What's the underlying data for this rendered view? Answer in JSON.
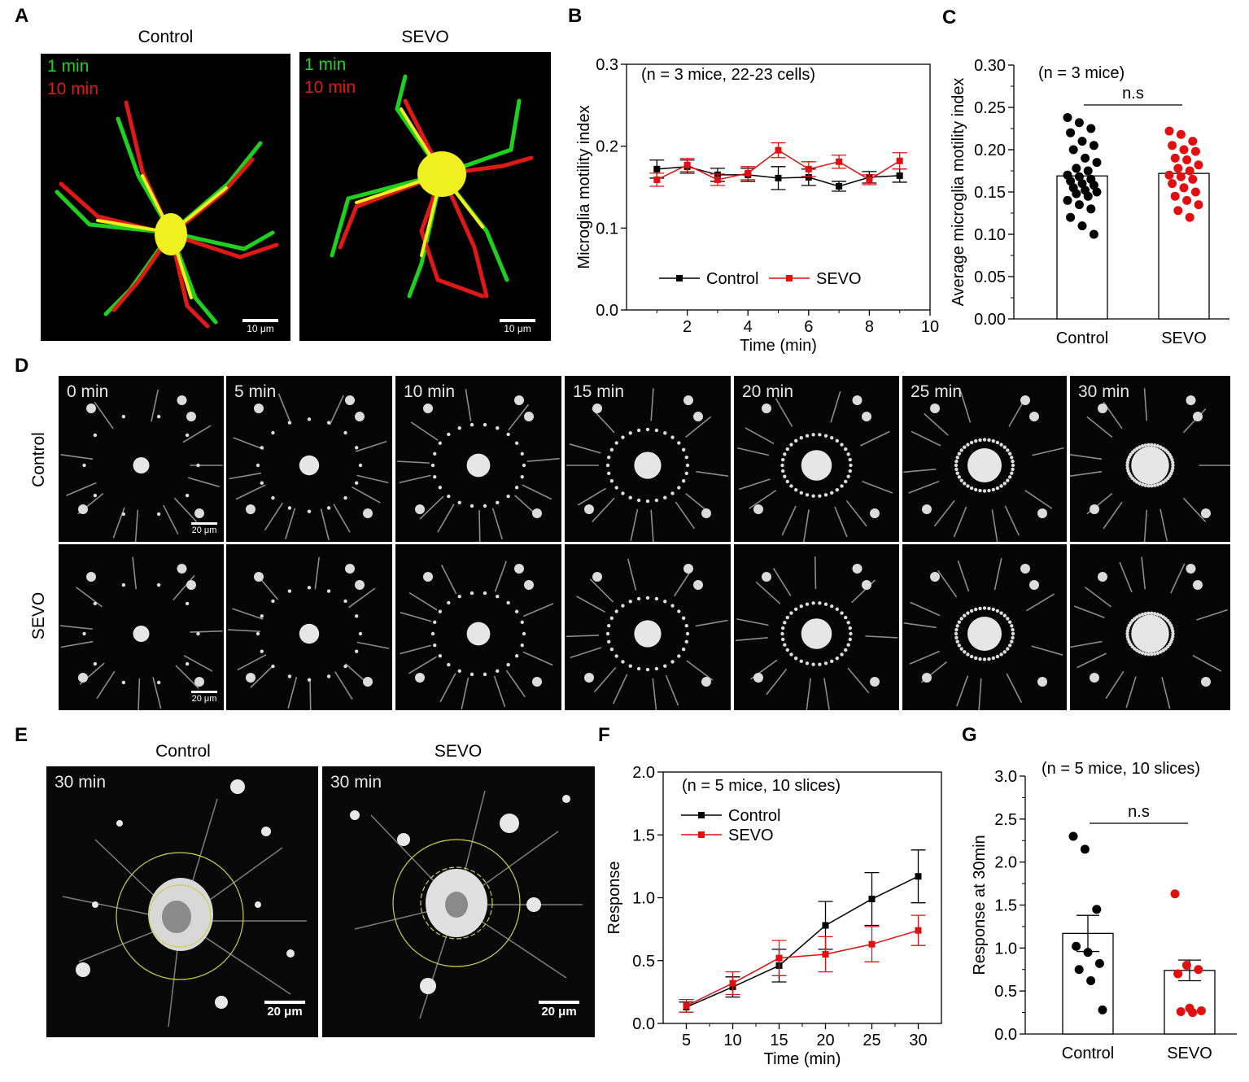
{
  "panels": {
    "A": {
      "letter": "A",
      "titles": [
        "Control",
        "SEVO"
      ],
      "overlay_green": "1 min",
      "overlay_red": "10 min",
      "scale": "10 μm",
      "colors": {
        "green": "#1fd11f",
        "red": "#e01818",
        "yellow": "#f0f020"
      }
    },
    "B": {
      "letter": "B"
    },
    "C": {
      "letter": "C"
    },
    "D": {
      "letter": "D",
      "times": [
        "0 min",
        "5 min",
        "10 min",
        "15 min",
        "20 min",
        "25 min",
        "30 min"
      ],
      "rows": [
        "Control",
        "SEVO"
      ],
      "scale": "20 μm"
    },
    "E": {
      "letter": "E",
      "titles": [
        "Control",
        "SEVO"
      ],
      "time": "30 min",
      "scale": "20 μm"
    },
    "F": {
      "letter": "F"
    },
    "G": {
      "letter": "G"
    }
  },
  "chart_data": [
    {
      "id": "B",
      "type": "line",
      "annotation": "(n = 3 mice, 22-23 cells)",
      "xlabel": "Time (min)",
      "ylabel": "Microglia motility index",
      "xlim": [
        0,
        10
      ],
      "ylim": [
        0,
        0.3
      ],
      "xticks": [
        "2",
        "4",
        "6",
        "8",
        "10"
      ],
      "yticks": [
        "0.0",
        "0.1",
        "0.2",
        "0.3"
      ],
      "legend": "bottom",
      "series": [
        {
          "name": "Control",
          "color": "#000000",
          "x": [
            1,
            2,
            3,
            4,
            5,
            6,
            7,
            8,
            9
          ],
          "y": [
            0.172,
            0.175,
            0.165,
            0.165,
            0.161,
            0.162,
            0.151,
            0.162,
            0.164
          ],
          "err": [
            0.011,
            0.008,
            0.008,
            0.008,
            0.014,
            0.01,
            0.006,
            0.007,
            0.008
          ]
        },
        {
          "name": "SEVO",
          "color": "#e01010",
          "x": [
            1,
            2,
            3,
            4,
            5,
            6,
            7,
            8,
            9
          ],
          "y": [
            0.159,
            0.177,
            0.159,
            0.167,
            0.195,
            0.172,
            0.181,
            0.159,
            0.182
          ],
          "err": [
            0.008,
            0.008,
            0.007,
            0.008,
            0.009,
            0.009,
            0.008,
            0.006,
            0.01
          ]
        }
      ]
    },
    {
      "id": "C",
      "type": "bar",
      "annotation": "(n = 3 mice)",
      "significance": "n.s",
      "ylabel": "Average microglia motility index",
      "ylim": [
        0,
        0.3
      ],
      "yticks": [
        "0.00",
        "0.05",
        "0.10",
        "0.15",
        "0.20",
        "0.25",
        "0.30"
      ],
      "categories": [
        "Control",
        "SEVO"
      ],
      "values": [
        0.169,
        0.172
      ],
      "colors": [
        "#000000",
        "#e01010"
      ],
      "points": [
        [
          0.238,
          0.232,
          0.225,
          0.22,
          0.21,
          0.205,
          0.2,
          0.19,
          0.185,
          0.178,
          0.175,
          0.17,
          0.168,
          0.165,
          0.163,
          0.16,
          0.158,
          0.155,
          0.152,
          0.15,
          0.148,
          0.145,
          0.14,
          0.135,
          0.13,
          0.12,
          0.11,
          0.1
        ],
        [
          0.222,
          0.218,
          0.21,
          0.205,
          0.2,
          0.198,
          0.19,
          0.188,
          0.182,
          0.178,
          0.175,
          0.17,
          0.168,
          0.165,
          0.16,
          0.155,
          0.15,
          0.145,
          0.14,
          0.135,
          0.128,
          0.12
        ]
      ]
    },
    {
      "id": "F",
      "type": "line",
      "annotation": "(n = 5 mice, 10 slices)",
      "xlabel": "Time (min)",
      "ylabel": "Response",
      "xlim": [
        2.5,
        32.5
      ],
      "ylim": [
        0,
        2.0
      ],
      "xticks": [
        "5",
        "10",
        "15",
        "20",
        "25",
        "30"
      ],
      "yticks": [
        "0.0",
        "0.5",
        "1.0",
        "1.5",
        "2.0"
      ],
      "legend": "top-left",
      "series": [
        {
          "name": "Control",
          "color": "#000000",
          "x": [
            5,
            10,
            15,
            20,
            25,
            30
          ],
          "y": [
            0.13,
            0.29,
            0.46,
            0.78,
            0.99,
            1.17
          ],
          "err": [
            0.04,
            0.08,
            0.13,
            0.19,
            0.21,
            0.21
          ]
        },
        {
          "name": "SEVO",
          "color": "#e01010",
          "x": [
            5,
            10,
            15,
            20,
            25,
            30
          ],
          "y": [
            0.14,
            0.32,
            0.52,
            0.55,
            0.63,
            0.74
          ],
          "err": [
            0.05,
            0.09,
            0.14,
            0.14,
            0.14,
            0.12
          ]
        }
      ]
    },
    {
      "id": "G",
      "type": "bar",
      "annotation": "(n = 5 mice, 10 slices)",
      "significance": "n.s",
      "ylabel": "Response at 30min",
      "ylim": [
        0,
        3.0
      ],
      "yticks": [
        "0.0",
        "0.5",
        "1.0",
        "1.5",
        "2.0",
        "2.5",
        "3.0"
      ],
      "categories": [
        "Control",
        "SEVO"
      ],
      "values": [
        1.17,
        0.74
      ],
      "err": [
        0.21,
        0.12
      ],
      "colors": [
        "#000000",
        "#e01010"
      ],
      "points": [
        [
          2.3,
          2.15,
          1.45,
          1.02,
          0.95,
          0.82,
          0.75,
          0.62,
          0.28
        ],
        [
          1.63,
          0.8,
          0.75,
          0.7,
          0.3,
          0.27,
          0.26,
          0.25
        ]
      ]
    }
  ]
}
